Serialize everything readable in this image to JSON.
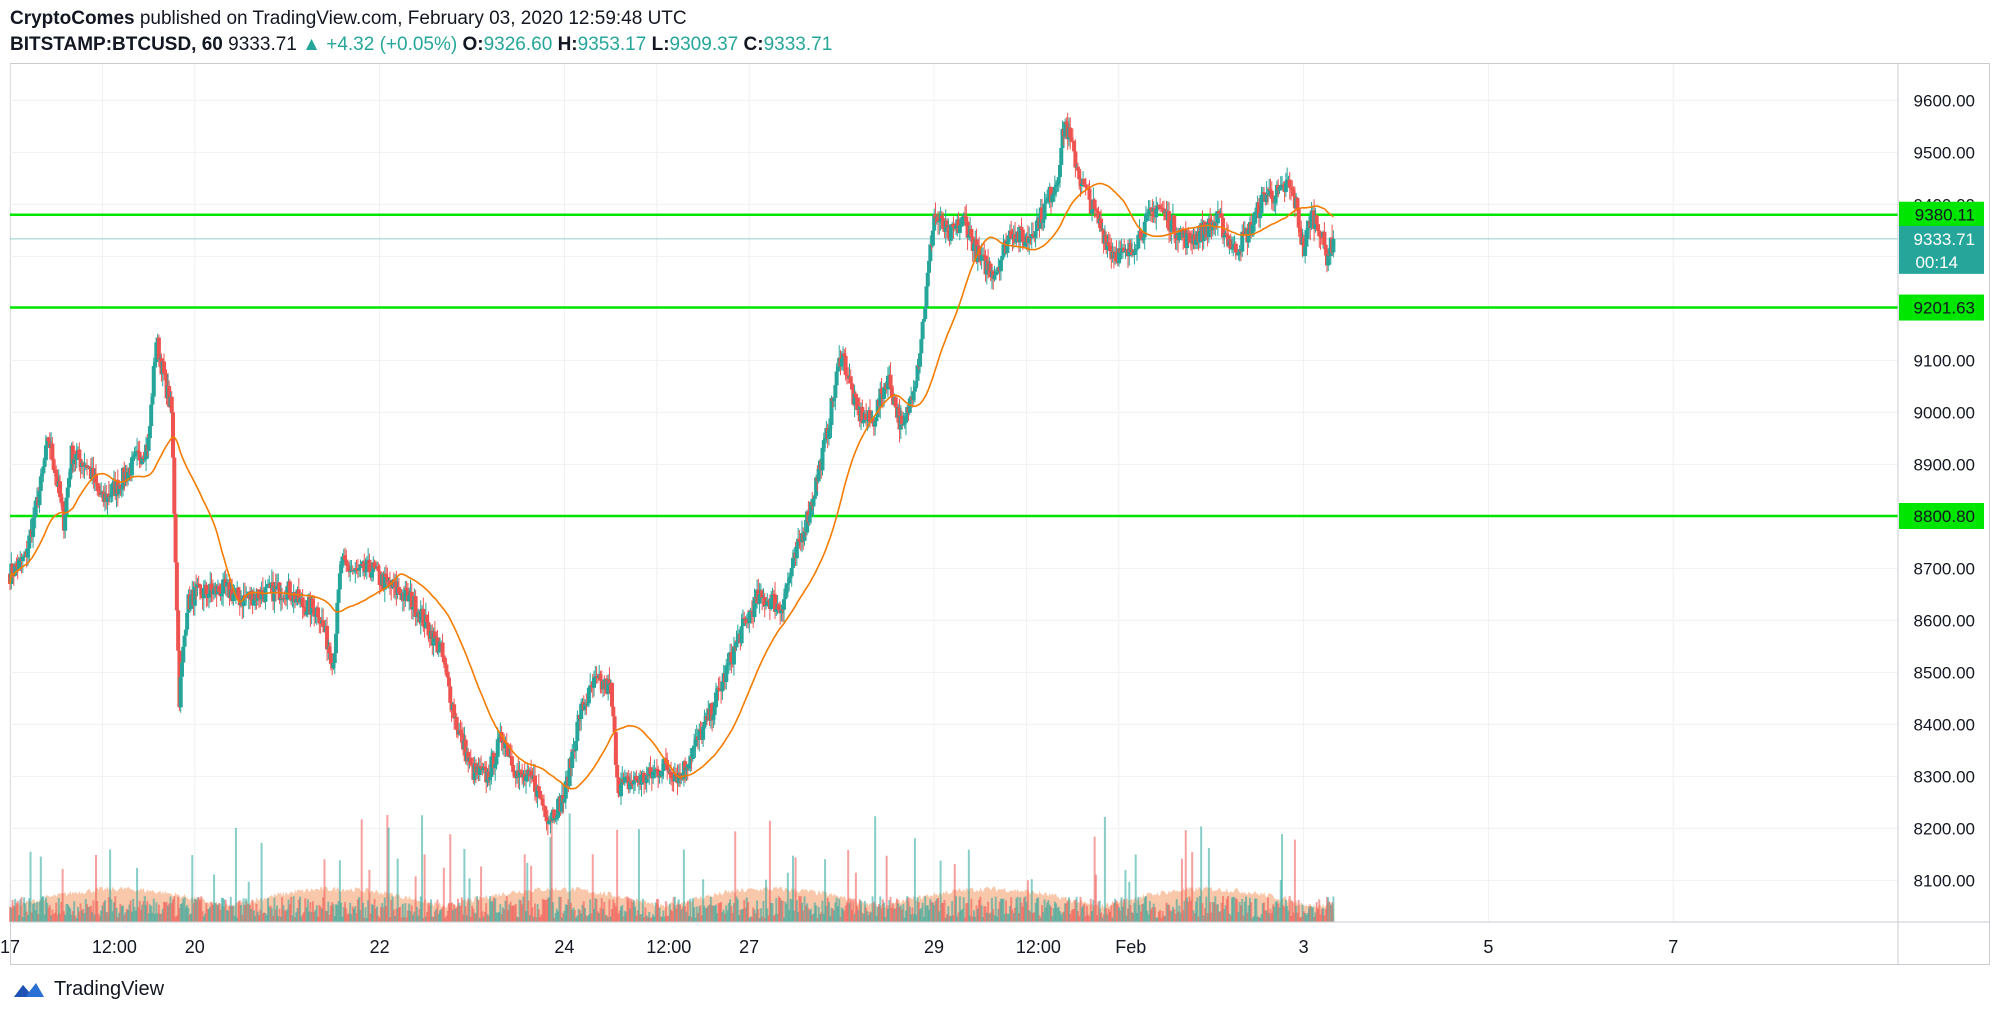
{
  "header": {
    "publisher": "CryptoComes",
    "published_text": "published on TradingView.com, February 03, 2020 12:59:48 UTC",
    "symbol": "BITSTAMP:BTCUSD, 60",
    "last": "9333.71",
    "change_arrow": "▲",
    "change": "+4.32 (+0.05%)",
    "o_label": "O:",
    "o_val": "9326.60",
    "h_label": "H:",
    "h_val": "9353.17",
    "l_label": "L:",
    "l_val": "9309.37",
    "c_label": "C:",
    "c_val": "9333.71"
  },
  "footer": {
    "brand": "TradingView"
  },
  "colors": {
    "up": "#26a69a",
    "down": "#ef5350",
    "ma": "#f57c00",
    "hline": "#00e600",
    "volume_area": "#f7b58f",
    "grid": "#eef0f3"
  },
  "chart_data": {
    "type": "candlestick",
    "symbol": "BITSTAMP:BTCUSD",
    "interval": "60",
    "ylim": [
      8020,
      9670
    ],
    "y_ticks": [
      8100,
      8200,
      8300,
      8400,
      8500,
      8600,
      8700,
      8800,
      8900,
      9000,
      9100,
      9200,
      9300,
      9400,
      9500,
      9600
    ],
    "y_tick_labels": [
      "8100.00",
      "8200.00",
      "8300.00",
      "8400.00",
      "8500.00",
      "8600.00",
      "8700.00",
      "8800.00",
      "8900.00",
      "9000.00",
      "9100.00",
      "9200.00",
      "9300.00",
      "9400.00",
      "9500.00",
      "9600.00"
    ],
    "x_ticks": [
      {
        "label": "17",
        "t": 0
      },
      {
        "label": "12:00",
        "t": 12
      },
      {
        "label": "20",
        "t": 24
      },
      {
        "label": "22",
        "t": 48
      },
      {
        "label": "24",
        "t": 72
      },
      {
        "label": "12:00",
        "t": 84
      },
      {
        "label": "27",
        "t": 96
      },
      {
        "label": "29",
        "t": 120
      },
      {
        "label": "12:00",
        "t": 132
      },
      {
        "label": "Feb",
        "t": 144
      },
      {
        "label": "3",
        "t": 168
      },
      {
        "label": "5",
        "t": 192
      },
      {
        "label": "7",
        "t": 216
      }
    ],
    "x_axis_note": "t in 6-hour units from Jan 17 00:00",
    "horizontal_lines": [
      {
        "price": 9380.11,
        "label": "9380.11"
      },
      {
        "price": 9201.63,
        "label": "9201.63"
      },
      {
        "price": 8800.8,
        "label": "8800.80"
      }
    ],
    "last_price": {
      "price": 9333.71,
      "label": "9333.71",
      "countdown": "00:14"
    },
    "close_path": [
      [
        0,
        8690
      ],
      [
        2,
        8720
      ],
      [
        4,
        8860
      ],
      [
        5,
        8950
      ],
      [
        6,
        8880
      ],
      [
        7,
        8790
      ],
      [
        8,
        8920
      ],
      [
        10,
        8900
      ],
      [
        12,
        8830
      ],
      [
        14,
        8860
      ],
      [
        16,
        8900
      ],
      [
        18,
        8940
      ],
      [
        19,
        9140
      ],
      [
        20,
        9070
      ],
      [
        21,
        9000
      ],
      [
        22,
        8450
      ],
      [
        23,
        8630
      ],
      [
        24,
        8650
      ],
      [
        28,
        8660
      ],
      [
        30,
        8640
      ],
      [
        32,
        8650
      ],
      [
        36,
        8660
      ],
      [
        38,
        8630
      ],
      [
        40,
        8620
      ],
      [
        42,
        8520
      ],
      [
        43,
        8710
      ],
      [
        45,
        8690
      ],
      [
        47,
        8700
      ],
      [
        48,
        8680
      ],
      [
        50,
        8660
      ],
      [
        52,
        8640
      ],
      [
        53,
        8620
      ],
      [
        56,
        8540
      ],
      [
        58,
        8400
      ],
      [
        60,
        8310
      ],
      [
        62,
        8300
      ],
      [
        64,
        8380
      ],
      [
        66,
        8300
      ],
      [
        68,
        8290
      ],
      [
        70,
        8220
      ],
      [
        72,
        8260
      ],
      [
        74,
        8420
      ],
      [
        76,
        8480
      ],
      [
        78,
        8470
      ],
      [
        79,
        8280
      ],
      [
        81,
        8290
      ],
      [
        83,
        8300
      ],
      [
        85,
        8320
      ],
      [
        87,
        8300
      ],
      [
        89,
        8360
      ],
      [
        91,
        8420
      ],
      [
        93,
        8500
      ],
      [
        95,
        8580
      ],
      [
        97,
        8640
      ],
      [
        99,
        8640
      ],
      [
        100,
        8620
      ],
      [
        102,
        8720
      ],
      [
        104,
        8820
      ],
      [
        106,
        8950
      ],
      [
        108,
        9120
      ],
      [
        110,
        9000
      ],
      [
        112,
        8980
      ],
      [
        114,
        9070
      ],
      [
        116,
        8960
      ],
      [
        118,
        9100
      ],
      [
        119,
        9230
      ],
      [
        120,
        9380
      ],
      [
        122,
        9340
      ],
      [
        124,
        9370
      ],
      [
        126,
        9290
      ],
      [
        128,
        9270
      ],
      [
        130,
        9350
      ],
      [
        132,
        9330
      ],
      [
        134,
        9380
      ],
      [
        136,
        9450
      ],
      [
        137,
        9560
      ],
      [
        139,
        9450
      ],
      [
        141,
        9380
      ],
      [
        143,
        9310
      ],
      [
        145,
        9300
      ],
      [
        147,
        9350
      ],
      [
        149,
        9400
      ],
      [
        151,
        9360
      ],
      [
        153,
        9330
      ],
      [
        155,
        9350
      ],
      [
        157,
        9370
      ],
      [
        159,
        9310
      ],
      [
        161,
        9350
      ],
      [
        163,
        9420
      ],
      [
        165,
        9420
      ],
      [
        166,
        9440
      ],
      [
        167,
        9400
      ],
      [
        168,
        9310
      ],
      [
        169,
        9380
      ],
      [
        170,
        9360
      ],
      [
        171,
        9300
      ],
      [
        172,
        9333.71
      ]
    ]
  }
}
